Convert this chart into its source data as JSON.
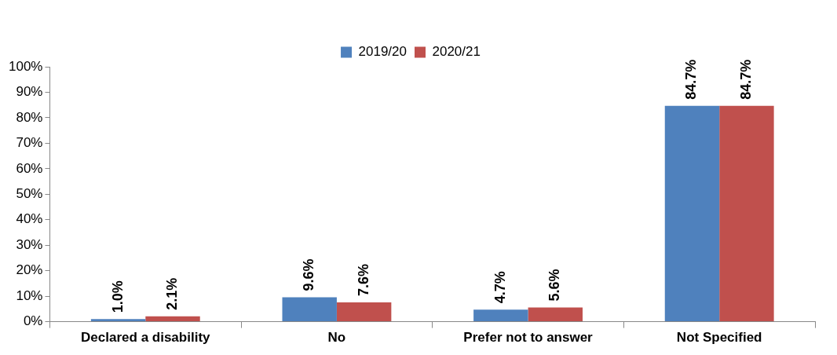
{
  "chart_data": {
    "type": "bar",
    "categories": [
      "Declared a disability",
      "No",
      "Prefer not to answer",
      "Not Specified"
    ],
    "series": [
      {
        "name": "2019/20",
        "color": "#4f81bd",
        "values": [
          1.0,
          9.6,
          4.7,
          84.7
        ],
        "value_labels": [
          "1.0%",
          "9.6%",
          "4.7%",
          "84.7%"
        ]
      },
      {
        "name": "2020/21",
        "color": "#c0504d",
        "values": [
          2.1,
          7.6,
          5.6,
          84.7
        ],
        "value_labels": [
          "2.1%",
          "7.6%",
          "5.6%",
          "84.7%"
        ]
      }
    ],
    "ylim": [
      0,
      100
    ],
    "yticks": [
      {
        "value": 0,
        "label": "0%"
      },
      {
        "value": 10,
        "label": "10%"
      },
      {
        "value": 20,
        "label": "20%"
      },
      {
        "value": 30,
        "label": "30%"
      },
      {
        "value": 40,
        "label": "40%"
      },
      {
        "value": 50,
        "label": "50%"
      },
      {
        "value": 60,
        "label": "60%"
      },
      {
        "value": 70,
        "label": "70%"
      },
      {
        "value": 80,
        "label": "80%"
      },
      {
        "value": 90,
        "label": "90%"
      },
      {
        "value": 100,
        "label": "100%"
      }
    ],
    "legend": "top"
  }
}
